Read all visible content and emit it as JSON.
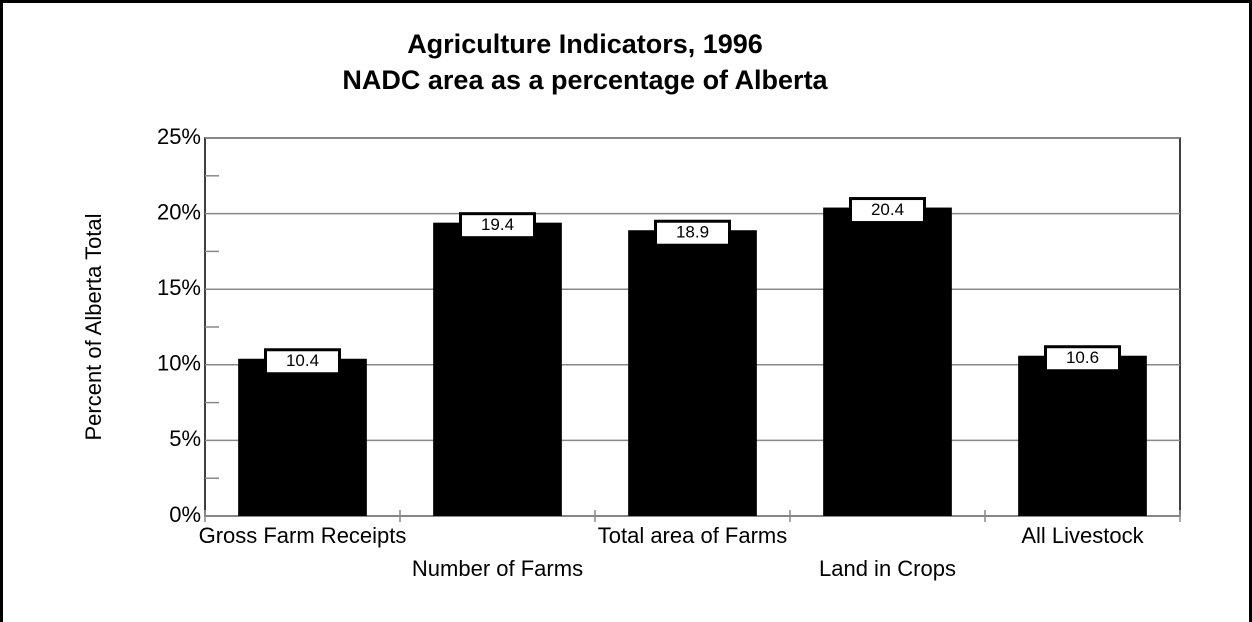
{
  "chart_data": {
    "type": "bar",
    "title": "Agriculture Indicators, 1996",
    "subtitle": "NADC area as a percentage of Alberta",
    "y_label": "Percent of Alberta Total",
    "categories": [
      "Gross Farm Receipts",
      "Number of Farms",
      "Total area of Farms",
      "Land in Crops",
      "All Livestock"
    ],
    "values": [
      10.4,
      19.4,
      18.9,
      20.4,
      10.6
    ],
    "color": "#000000",
    "ylim": [
      0,
      25
    ],
    "yticks": [
      {
        "value": 0,
        "label": "0%"
      },
      {
        "value": 5,
        "label": "5%"
      },
      {
        "value": 10,
        "label": "10%"
      },
      {
        "value": 15,
        "label": "15%"
      },
      {
        "value": 20,
        "label": "20%"
      },
      {
        "value": 25,
        "label": "25%"
      }
    ],
    "grid": true
  }
}
